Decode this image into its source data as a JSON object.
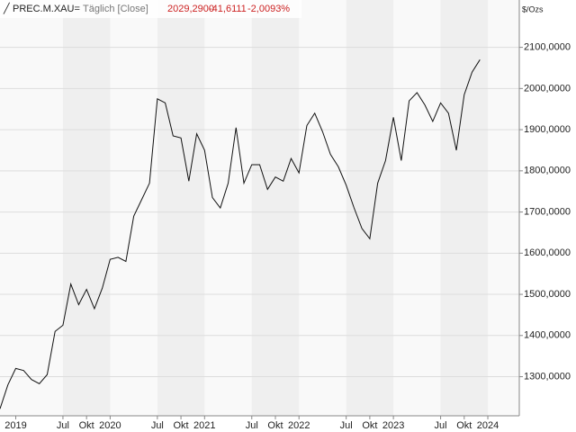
{
  "chart_data": {
    "type": "line",
    "title": "PREC.M.XAU=",
    "subtitle": "Täglich [Close]",
    "quote": {
      "last": "2029,2900",
      "change": "-41,6111",
      "change_pct": "-2,0093%"
    },
    "y_unit": "$/Ozs",
    "color": "#111111",
    "grid": true,
    "x": [
      "2018-11",
      "2018-12",
      "2019-01",
      "2019-02",
      "2019-03",
      "2019-04",
      "2019-05",
      "2019-06",
      "2019-07",
      "2019-08",
      "2019-09",
      "2019-10",
      "2019-11",
      "2019-12",
      "2020-01",
      "2020-02",
      "2020-03",
      "2020-04",
      "2020-05",
      "2020-06",
      "2020-07",
      "2020-08",
      "2020-09",
      "2020-10",
      "2020-11",
      "2020-12",
      "2021-01",
      "2021-02",
      "2021-03",
      "2021-04",
      "2021-05",
      "2021-06",
      "2021-07",
      "2021-08",
      "2021-09",
      "2021-10",
      "2021-11",
      "2021-12",
      "2022-01",
      "2022-02",
      "2022-03",
      "2022-04",
      "2022-05",
      "2022-06",
      "2022-07",
      "2022-08",
      "2022-09",
      "2022-10",
      "2022-11",
      "2022-12",
      "2023-01",
      "2023-02",
      "2023-03",
      "2023-04",
      "2023-05",
      "2023-06",
      "2023-07",
      "2023-08",
      "2023-09",
      "2023-10",
      "2023-11",
      "2023-12"
    ],
    "values": [
      1222,
      1280,
      1320,
      1315,
      1293,
      1283,
      1305,
      1410,
      1425,
      1525,
      1475,
      1512,
      1465,
      1515,
      1585,
      1590,
      1580,
      1690,
      1730,
      1770,
      1975,
      1965,
      1885,
      1880,
      1775,
      1890,
      1850,
      1735,
      1710,
      1770,
      1905,
      1770,
      1815,
      1815,
      1755,
      1785,
      1775,
      1830,
      1795,
      1910,
      1940,
      1895,
      1840,
      1810,
      1765,
      1710,
      1660,
      1635,
      1770,
      1825,
      1930,
      1825,
      1970,
      1990,
      1960,
      1920,
      1965,
      1940,
      1850,
      1985,
      2040,
      2070
    ],
    "xlim": [
      "2018-11",
      "2024-05"
    ],
    "xticks": [
      {
        "value": "2019-01",
        "label": "2019"
      },
      {
        "value": "2019-07",
        "label": "Jul"
      },
      {
        "value": "2019-10",
        "label": "Okt"
      },
      {
        "value": "2020-01",
        "label": "2020"
      },
      {
        "value": "2020-07",
        "label": "Jul"
      },
      {
        "value": "2020-10",
        "label": "Okt"
      },
      {
        "value": "2021-01",
        "label": "2021"
      },
      {
        "value": "2021-07",
        "label": "Jul"
      },
      {
        "value": "2021-10",
        "label": "Okt"
      },
      {
        "value": "2022-01",
        "label": "2022"
      },
      {
        "value": "2022-07",
        "label": "Jul"
      },
      {
        "value": "2022-10",
        "label": "Okt"
      },
      {
        "value": "2023-01",
        "label": "2023"
      },
      {
        "value": "2023-07",
        "label": "Jul"
      },
      {
        "value": "2023-10",
        "label": "Okt"
      },
      {
        "value": "2024-01",
        "label": "2024"
      }
    ],
    "ylim": [
      1205,
      2215
    ],
    "yticks": [
      {
        "value": 1300,
        "label": "1300,0000"
      },
      {
        "value": 1400,
        "label": "1400,0000"
      },
      {
        "value": 1500,
        "label": "1500,0000"
      },
      {
        "value": 1600,
        "label": "1600,0000"
      },
      {
        "value": 1700,
        "label": "1700,0000"
      },
      {
        "value": 1800,
        "label": "1800,0000"
      },
      {
        "value": 1900,
        "label": "1900,0000"
      },
      {
        "value": 2000,
        "label": "2000,0000"
      },
      {
        "value": 2100,
        "label": "2100,0000"
      }
    ]
  }
}
